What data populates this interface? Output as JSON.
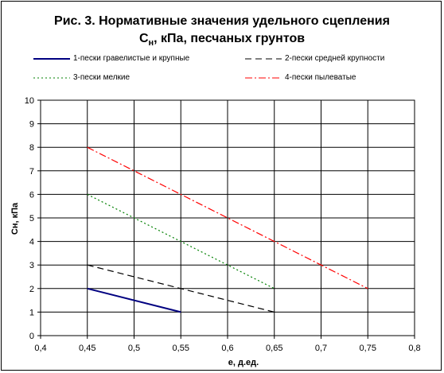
{
  "title": {
    "line1": "Рис. 3. Нормативные значения удельного сцепления",
    "line2_prefix": "C",
    "line2_sub": "н",
    "line2_suffix": ", кПа, песчаных грунтов"
  },
  "chart_data": {
    "type": "line",
    "xlabel": "e, д.ед.",
    "ylabel": "Cн, кПа",
    "xlim": [
      0.4,
      0.8
    ],
    "ylim": [
      0,
      10
    ],
    "xticks": [
      "0,4",
      "0,45",
      "0,5",
      "0,55",
      "0,6",
      "0,65",
      "0,7",
      "0,75",
      "0,8"
    ],
    "yticks": [
      "0",
      "1",
      "2",
      "3",
      "4",
      "5",
      "6",
      "7",
      "8",
      "9",
      "10"
    ],
    "grid": true,
    "legend_position": "top",
    "series": [
      {
        "name": "1-пески гравелистые и крупные",
        "color": "#000080",
        "style": "solid",
        "x": [
          0.45,
          0.55
        ],
        "y": [
          2,
          1
        ]
      },
      {
        "name": "2-пески средней крупности",
        "color": "#000000",
        "style": "dash",
        "x": [
          0.45,
          0.65
        ],
        "y": [
          3,
          1
        ]
      },
      {
        "name": "3-пески мелкие",
        "color": "#008000",
        "style": "dot",
        "x": [
          0.45,
          0.65
        ],
        "y": [
          6,
          2
        ]
      },
      {
        "name": "4-пески пылеватые",
        "color": "#ff0000",
        "style": "dashdot",
        "x": [
          0.45,
          0.75
        ],
        "y": [
          8,
          2
        ]
      }
    ]
  }
}
